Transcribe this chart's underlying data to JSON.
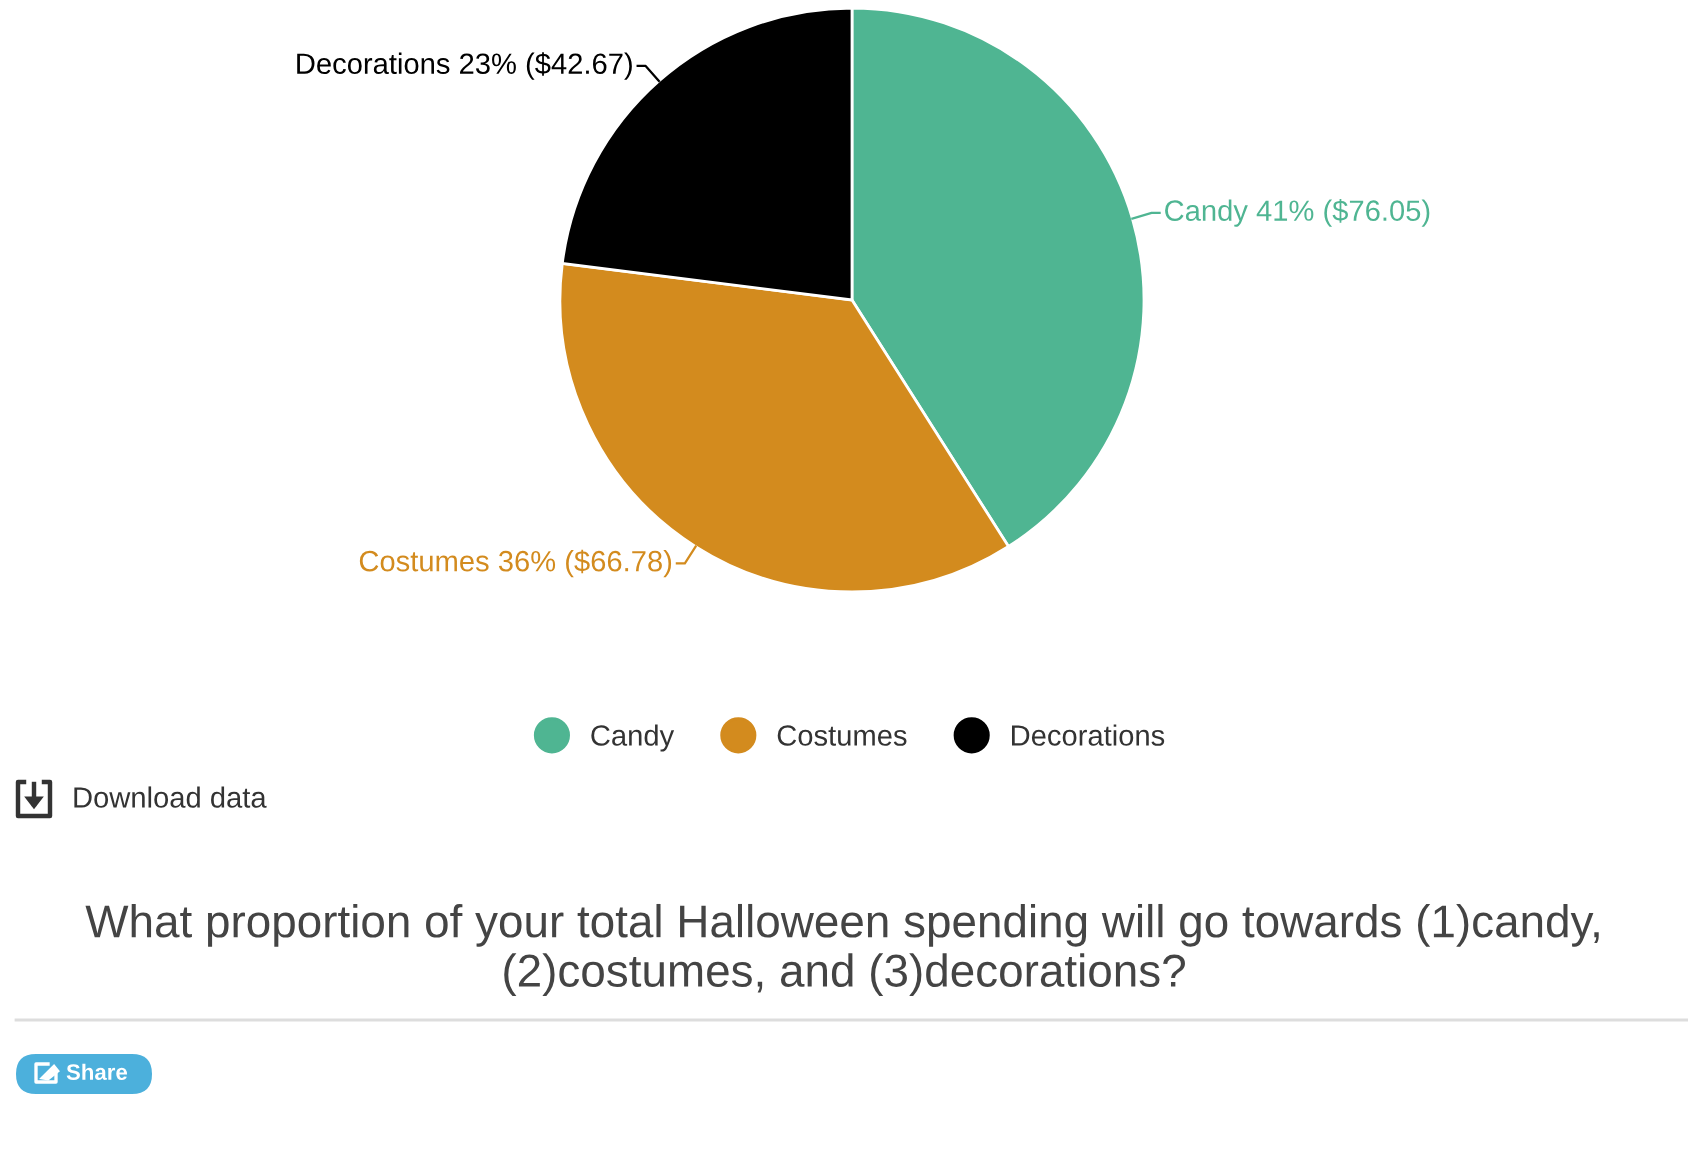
{
  "chart_data": {
    "type": "pie",
    "title": "What proportion of your total Halloween spending will go towards (1)candy, (2)costumes, and (3)decorations?",
    "categories": [
      "Candy",
      "Costumes",
      "Decorations"
    ],
    "values": [
      76.05,
      66.78,
      42.67
    ],
    "colors": [
      "#4fb592",
      "#d38b1e",
      "#000000"
    ],
    "value_labels": [
      "41% ($76.05)",
      "36% ($66.78)",
      "23% ($42.67)"
    ],
    "legend": "bottom",
    "annotations": [
      "Download data",
      "Share"
    ]
  }
}
